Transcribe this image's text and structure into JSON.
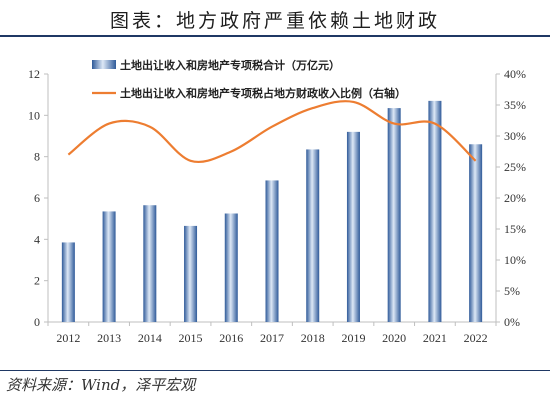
{
  "title": "图表：地方政府严重依赖土地财政",
  "source": "资料来源：Wind，泽平宏观",
  "colors": {
    "bar": "#4a7ac0",
    "bar_highlight": "#dde8f6",
    "bar_dark": "#2f5a99",
    "line": "#ed7d31",
    "rule": "#1f3864",
    "axis": "#bfbfbf"
  },
  "chart_data": {
    "type": "bar+line",
    "categories": [
      "2012",
      "2013",
      "2014",
      "2015",
      "2016",
      "2017",
      "2018",
      "2019",
      "2020",
      "2021",
      "2022"
    ],
    "series": [
      {
        "name": "土地出让收入和房地产专项税合计（万亿元）",
        "type": "bar",
        "axis": "left",
        "values": [
          3.85,
          5.35,
          5.65,
          4.65,
          5.25,
          6.85,
          8.35,
          9.2,
          10.35,
          10.7,
          8.6
        ]
      },
      {
        "name": "土地出让收入和房地产专项税占地方财政收入比例（右轴）",
        "type": "line",
        "axis": "right",
        "values": [
          27.0,
          32.0,
          31.5,
          26.0,
          27.5,
          31.5,
          34.5,
          35.5,
          32.0,
          32.0,
          26.0
        ]
      }
    ],
    "y_left": {
      "min": 0,
      "max": 12,
      "ticks": [
        "0",
        "2",
        "4",
        "6",
        "8",
        "10",
        "12"
      ]
    },
    "y_right": {
      "min": 0,
      "max": 40,
      "ticks": [
        "0%",
        "5%",
        "10%",
        "15%",
        "20%",
        "25%",
        "30%",
        "35%",
        "40%"
      ]
    },
    "grid": false,
    "legend_position": "top-left"
  }
}
